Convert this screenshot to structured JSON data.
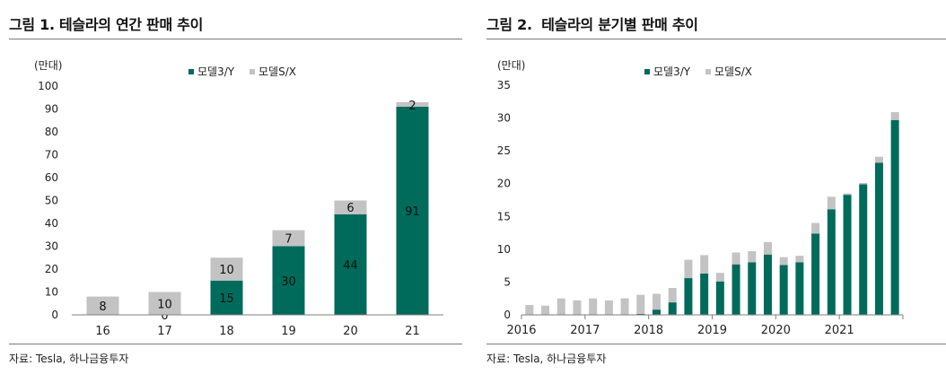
{
  "colors": {
    "model3y": "#006b5b",
    "modelsx": "#c3c3c3",
    "axis": "#7f7f7f"
  },
  "chart_data": [
    {
      "type": "bar",
      "stacked": true,
      "title": "그림 1. 테슬라의 연간 판매 추이",
      "unit_label": "(만대)",
      "source": "자료: Tesla, 하나금융투자",
      "categories": [
        "16",
        "17",
        "18",
        "19",
        "20",
        "21"
      ],
      "series": [
        {
          "name": "모델3/Y",
          "values": [
            0,
            0,
            15,
            30,
            44,
            91
          ],
          "labels": [
            "",
            "0",
            "15",
            "30",
            "44",
            "91"
          ]
        },
        {
          "name": "모델S/X",
          "values": [
            8,
            10,
            10,
            7,
            6,
            2
          ],
          "labels": [
            "8",
            "10",
            "10",
            "7",
            "6",
            "2"
          ]
        }
      ],
      "ylim": [
        0,
        100
      ],
      "yticks": [
        0,
        10,
        20,
        30,
        40,
        50,
        60,
        70,
        80,
        90,
        100
      ],
      "legend": "top-center"
    },
    {
      "type": "bar",
      "stacked": true,
      "title": "그림 2.  테슬라의 분기별 판매 추이",
      "unit_label": "(만대)",
      "source": "자료: Tesla, 하나금융투자",
      "categories": [
        "2016Q1",
        "2016Q2",
        "2016Q3",
        "2016Q4",
        "2017Q1",
        "2017Q2",
        "2017Q3",
        "2017Q4",
        "2018Q1",
        "2018Q2",
        "2018Q3",
        "2018Q4",
        "2019Q1",
        "2019Q2",
        "2019Q3",
        "2019Q4",
        "2020Q1",
        "2020Q2",
        "2020Q3",
        "2020Q4",
        "2021Q1",
        "2021Q2",
        "2021Q3",
        "2021Q4"
      ],
      "x_tick_labels": [
        "2016",
        "2017",
        "2018",
        "2019",
        "2020",
        "2021"
      ],
      "series": [
        {
          "name": "모델3/Y",
          "values": [
            0,
            0,
            0,
            0,
            0,
            0,
            0.02,
            0.15,
            0.8,
            1.9,
            5.6,
            6.3,
            5.1,
            7.7,
            8.0,
            9.2,
            7.6,
            8.0,
            12.4,
            16.1,
            18.3,
            19.9,
            23.2,
            29.7
          ]
        },
        {
          "name": "모델S/X",
          "values": [
            1.5,
            1.4,
            2.5,
            2.2,
            2.5,
            2.2,
            2.5,
            2.9,
            2.4,
            2.2,
            2.8,
            2.8,
            1.3,
            1.8,
            1.7,
            1.9,
            1.2,
            1.0,
            1.6,
            1.9,
            0.2,
            0.2,
            0.9,
            1.2
          ]
        }
      ],
      "ylim": [
        0,
        35
      ],
      "yticks": [
        0,
        5,
        10,
        15,
        20,
        25,
        30,
        35
      ],
      "legend": "top-center"
    }
  ]
}
